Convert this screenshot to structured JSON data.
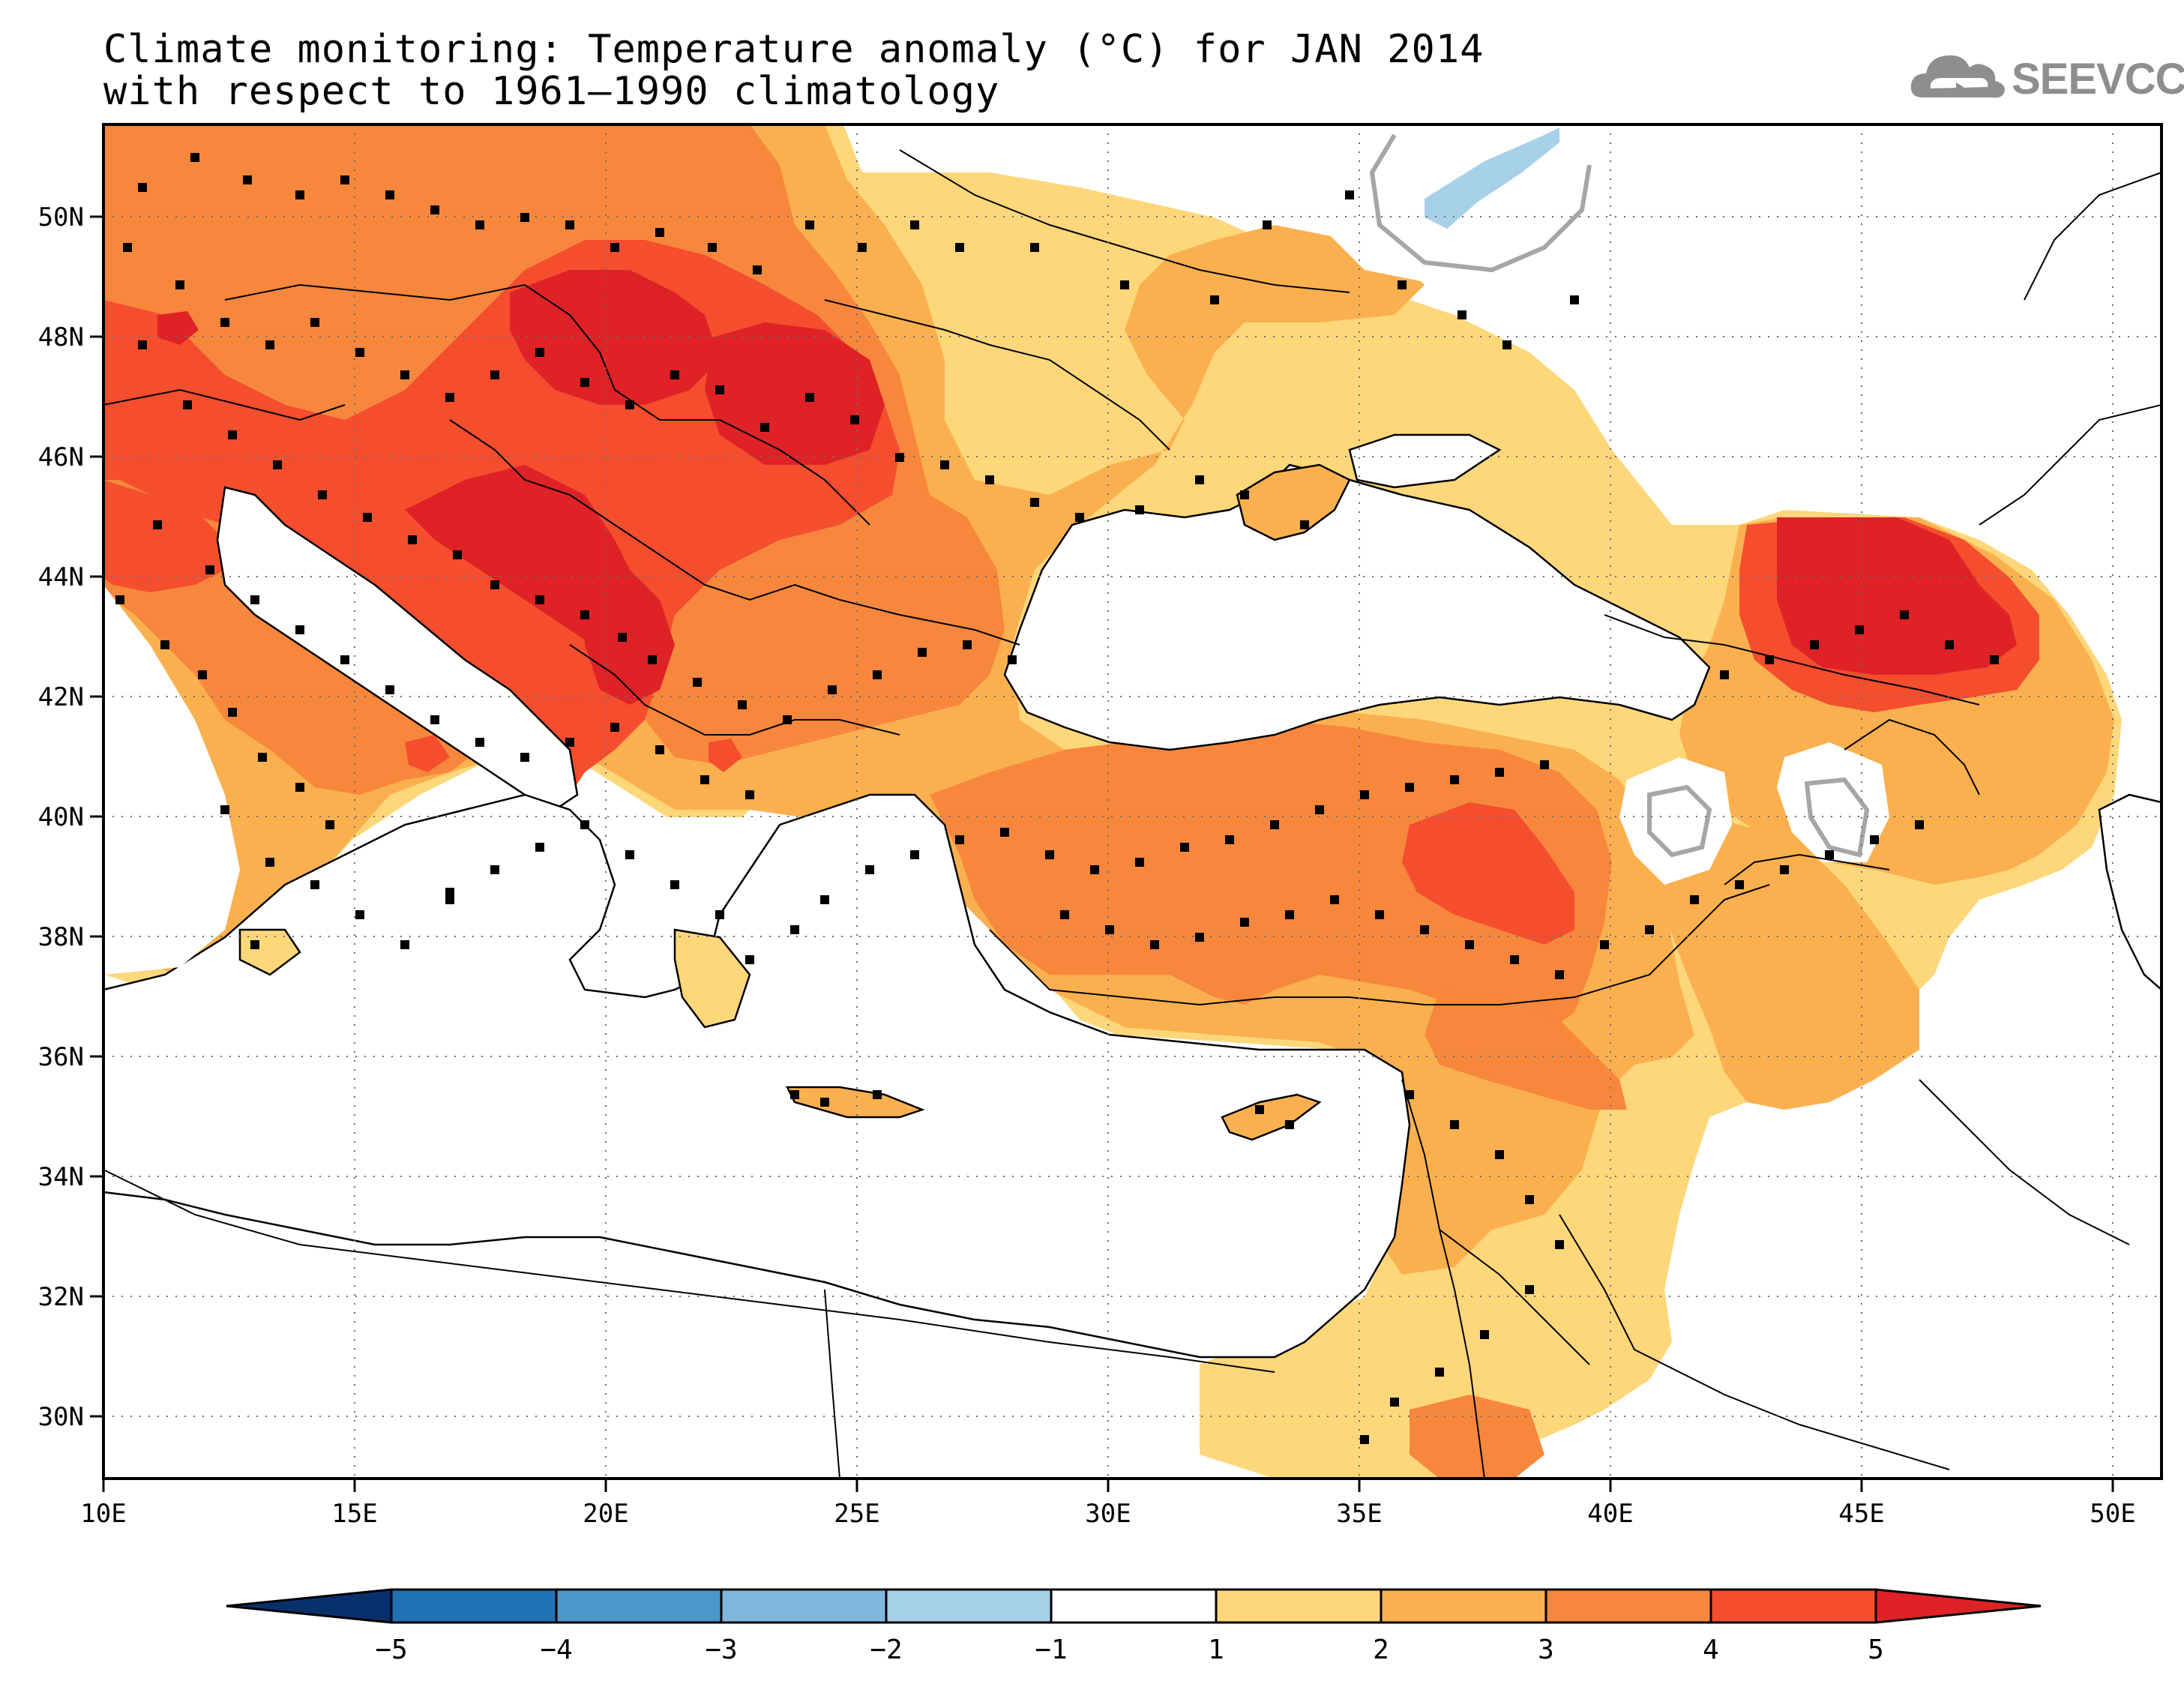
{
  "title": {
    "line1": "Climate monitoring: Temperature anomaly (°C) for JAN 2014",
    "line2": "with respect to 1961–1990 climatology"
  },
  "logo": {
    "text": "SEEVCCC",
    "icon": "cloud-icon"
  },
  "axes": {
    "lon_ticks": [
      "10E",
      "15E",
      "20E",
      "25E",
      "30E",
      "35E",
      "40E",
      "45E",
      "50E"
    ],
    "lat_ticks": [
      "50N",
      "48N",
      "46N",
      "44N",
      "42N",
      "40N",
      "38N",
      "36N",
      "34N",
      "32N",
      "30N"
    ]
  },
  "colorbar": {
    "labels": [
      "−5",
      "−4",
      "−3",
      "−2",
      "−1",
      "1",
      "2",
      "3",
      "4",
      "5"
    ],
    "colors": [
      "#08306b",
      "#2171b5",
      "#4a98cb",
      "#7fb8de",
      "#a7d0e9",
      "#ffffff",
      "#fdd77a",
      "#fbb04f",
      "#f7873c",
      "#f44e2e",
      "#de2226"
    ]
  },
  "anomaly_colors": {
    "1-2": "#fdd77a",
    "2-3": "#fbb04f",
    "3-4": "#f7873c",
    "4-5": "#f44e2e",
    "gt5": "#de2226",
    "neg1-neg2": "#a7d0e9"
  }
}
